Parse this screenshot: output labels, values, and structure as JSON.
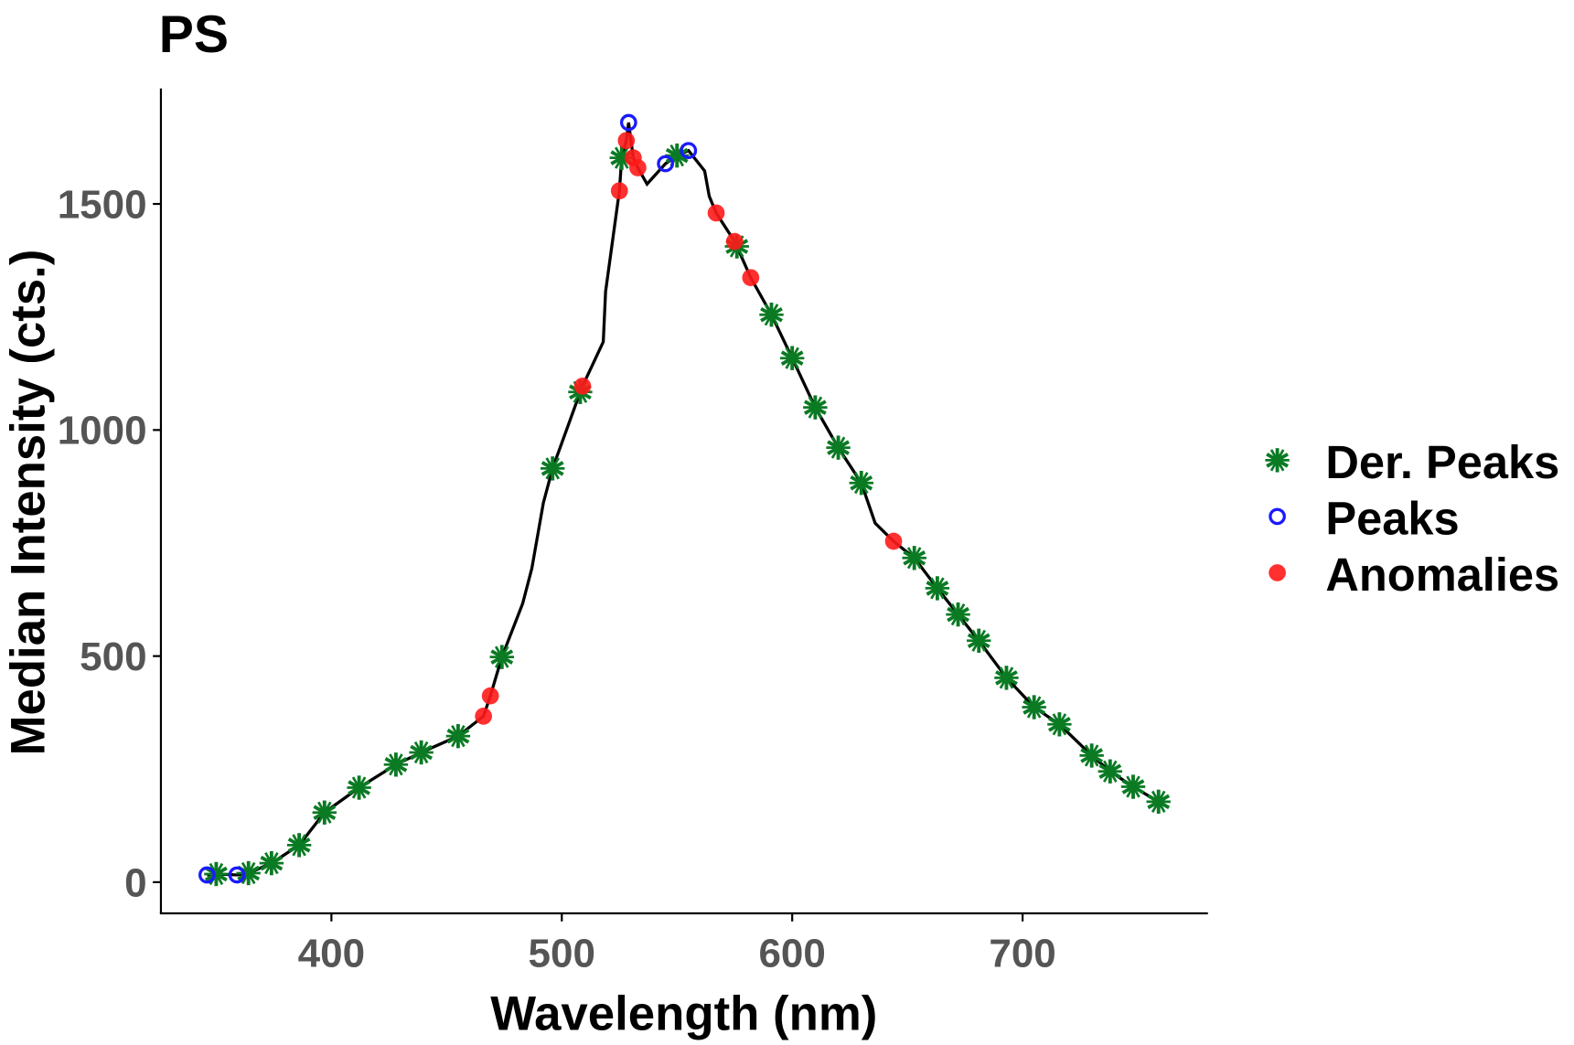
{
  "chart_data": {
    "type": "line",
    "title": "PS",
    "xlabel": "Wavelength (nm)",
    "ylabel": "Median Intensity (cts.)",
    "xlim": [
      326,
      780
    ],
    "ylim": [
      -69,
      1751
    ],
    "xticks": [
      400,
      500,
      600,
      700
    ],
    "yticks": [
      0,
      500,
      1000,
      1500
    ],
    "grid": false,
    "legend_position": "right",
    "line": {
      "color": "#000000",
      "x": [
        346,
        350,
        359,
        364,
        374,
        386,
        397,
        412,
        428,
        439,
        455,
        466,
        469,
        474,
        483,
        487,
        492,
        496,
        508,
        509,
        518,
        519,
        525,
        526,
        528,
        529,
        531,
        533,
        537,
        545,
        550,
        555,
        562,
        564,
        567,
        575,
        576,
        582,
        591,
        600,
        610,
        620,
        630,
        636,
        644,
        653,
        663,
        672,
        681,
        693,
        705,
        716,
        730,
        738,
        748,
        759
      ],
      "y": [
        16,
        18,
        16,
        20,
        42,
        82,
        154,
        209,
        260,
        287,
        323,
        367,
        412,
        498,
        616,
        694,
        839,
        915,
        1084,
        1097,
        1195,
        1306,
        1529,
        1602,
        1640,
        1680,
        1602,
        1580,
        1544,
        1589,
        1607,
        1618,
        1573,
        1517,
        1480,
        1417,
        1406,
        1337,
        1255,
        1159,
        1050,
        961,
        883,
        794,
        754,
        717,
        650,
        592,
        534,
        452,
        387,
        349,
        280,
        245,
        211,
        178
      ]
    },
    "series": [
      {
        "name": "Der. Peaks",
        "marker": "asterisk",
        "color": "#0a7a23",
        "x": [
          350,
          364,
          374,
          386,
          397,
          412,
          428,
          439,
          455,
          474,
          496,
          508,
          526,
          550,
          576,
          591,
          600,
          610,
          620,
          630,
          653,
          663,
          672,
          681,
          693,
          705,
          716,
          730,
          738,
          748,
          759
        ],
        "y": [
          18,
          20,
          42,
          82,
          154,
          209,
          260,
          287,
          323,
          498,
          915,
          1084,
          1602,
          1607,
          1406,
          1255,
          1159,
          1050,
          961,
          883,
          717,
          650,
          592,
          534,
          452,
          387,
          349,
          280,
          245,
          211,
          178
        ]
      },
      {
        "name": "Peaks",
        "marker": "open-circle",
        "color": "#1a1aff",
        "x": [
          346,
          359,
          529,
          545,
          555
        ],
        "y": [
          16,
          16,
          1680,
          1589,
          1618
        ]
      },
      {
        "name": "Anomalies",
        "marker": "filled-circle",
        "color": "#ff1a1a",
        "x": [
          466,
          469,
          509,
          525,
          528,
          531,
          533,
          567,
          575,
          582,
          644
        ],
        "y": [
          367,
          412,
          1097,
          1529,
          1640,
          1602,
          1580,
          1480,
          1417,
          1337,
          754
        ]
      }
    ]
  }
}
